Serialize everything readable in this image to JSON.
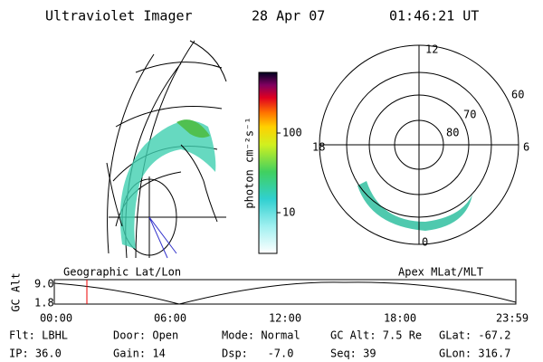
{
  "header": {
    "title": "Ultraviolet Imager",
    "date": "28 Apr 07",
    "time": "01:46:21 UT"
  },
  "colorbar": {
    "label": "photon cm⁻²s⁻¹",
    "ticks": [
      "100",
      "10"
    ]
  },
  "polar": {
    "mlt_labels": [
      "12",
      "6",
      "0",
      "18"
    ],
    "lat_labels": [
      "60",
      "70",
      "80"
    ]
  },
  "timeline": {
    "left_label": "Geographic Lat/Lon",
    "right_label": "Apex MLat/MLT",
    "axis_label": "GC Alt",
    "y_labels": [
      "9.0",
      "1.8"
    ],
    "time_labels": [
      "00:00",
      "06:00",
      "12:00",
      "18:00",
      "23:59"
    ]
  },
  "footer": {
    "rows": [
      [
        "Flt: LBHL",
        "Door: Open",
        "Mode: Normal",
        "GC Alt: 7.5 Re",
        "GLat: -67.2"
      ],
      [
        "IP: 36.0",
        "Gain: 14",
        "Dsp:   -7.0",
        "Seq: 39",
        "GLon: 316.7"
      ]
    ]
  }
}
